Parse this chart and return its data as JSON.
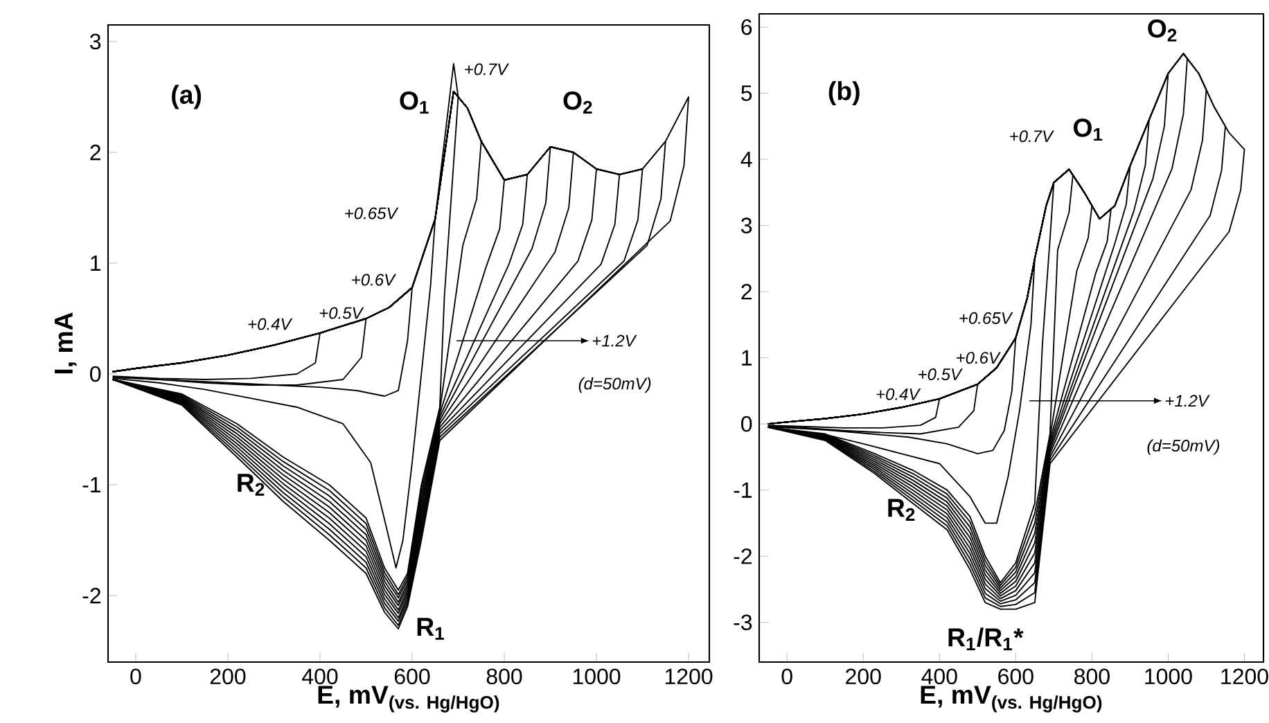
{
  "chart_data": [
    {
      "type": "line",
      "xlabel": "\\text{\\bfseries E, mV}_{\\text{\\bfseries (vs. Hg/HgO)}}",
      "ylabel": "I, mA",
      "xlim": [
        -60,
        1245
      ],
      "ylim": [
        -2.6,
        3.15
      ],
      "xticks": [
        0,
        200,
        400,
        600,
        800,
        1000,
        1200
      ],
      "yticks": [
        -2,
        -1,
        0,
        1,
        2,
        3
      ],
      "line_style": "solid",
      "annotations": [
        "(a)",
        "O$_{1}$",
        "O$_{2}$",
        "R$_{1}$",
        "R$_{2}$",
        "+0.7V",
        "+0.65V",
        "+0.6V",
        "+0.5V",
        "+0.4V",
        "+1.2V",
        "(d=50mV)"
      ],
      "series": [
        {
          "color": "#000000",
          "x": [
            -50,
            0,
            100,
            200,
            300,
            400,
            390,
            350,
            250,
            150,
            50,
            -50
          ],
          "values": [
            0.02,
            0.05,
            0.1,
            0.17,
            0.26,
            0.37,
            0.1,
            0.0,
            -0.04,
            -0.05,
            -0.04,
            -0.02
          ]
        },
        {
          "color": "#000000",
          "x": [
            -50,
            0,
            100,
            200,
            300,
            400,
            500,
            490,
            450,
            350,
            250,
            150,
            50,
            -50
          ],
          "values": [
            0.02,
            0.05,
            0.1,
            0.17,
            0.26,
            0.37,
            0.5,
            0.15,
            -0.05,
            -0.1,
            -0.1,
            -0.08,
            -0.05,
            -0.03
          ]
        },
        {
          "color": "#000000",
          "x": [
            -50,
            0,
            100,
            200,
            300,
            400,
            500,
            550,
            600,
            590,
            570,
            540,
            480,
            400,
            300,
            200,
            100,
            0,
            -50
          ],
          "values": [
            0.02,
            0.05,
            0.1,
            0.17,
            0.26,
            0.37,
            0.5,
            0.6,
            0.78,
            0.3,
            -0.15,
            -0.2,
            -0.15,
            -0.12,
            -0.1,
            -0.08,
            -0.06,
            -0.04,
            -0.03
          ]
        },
        {
          "color": "#000000",
          "x": [
            -50,
            0,
            100,
            200,
            300,
            400,
            500,
            550,
            600,
            650,
            640,
            620,
            600,
            580,
            565,
            545,
            510,
            450,
            350,
            250,
            150,
            50,
            -50
          ],
          "values": [
            0.02,
            0.05,
            0.1,
            0.17,
            0.26,
            0.37,
            0.5,
            0.6,
            0.78,
            1.4,
            0.8,
            0.0,
            -0.8,
            -1.5,
            -1.75,
            -1.4,
            -0.8,
            -0.45,
            -0.3,
            -0.22,
            -0.14,
            -0.08,
            -0.04
          ]
        },
        {
          "color": "#000000",
          "x": [
            -50,
            0,
            100,
            200,
            300,
            400,
            500,
            550,
            600,
            650,
            690,
            700,
            690,
            670,
            660,
            620,
            590,
            570,
            540,
            500,
            420,
            320,
            220,
            100,
            -50
          ],
          "values": [
            0.02,
            0.05,
            0.1,
            0.17,
            0.26,
            0.37,
            0.5,
            0.6,
            0.78,
            1.4,
            2.8,
            2.5,
            1.9,
            0.7,
            -0.3,
            -1.0,
            -1.8,
            -1.95,
            -1.75,
            -1.3,
            -1.0,
            -0.75,
            -0.45,
            -0.18,
            -0.05
          ]
        },
        {
          "color": "#000000",
          "x": [
            -50,
            0,
            100,
            200,
            300,
            400,
            500,
            550,
            600,
            650,
            690,
            720,
            750,
            740,
            710,
            660,
            620,
            590,
            570,
            540,
            500,
            420,
            320,
            220,
            100,
            -50
          ],
          "values": [
            0.02,
            0.05,
            0.1,
            0.17,
            0.26,
            0.37,
            0.5,
            0.6,
            0.78,
            1.4,
            2.55,
            2.4,
            2.1,
            1.58,
            1.16,
            -0.33,
            -1.05,
            -1.83,
            -1.99,
            -1.79,
            -1.35,
            -1.05,
            -0.79,
            -0.48,
            -0.19,
            -0.05
          ]
        },
        {
          "color": "#000000",
          "x": [
            -50,
            0,
            100,
            200,
            300,
            400,
            500,
            550,
            600,
            650,
            690,
            720,
            750,
            800,
            790,
            760,
            660,
            620,
            590,
            570,
            540,
            500,
            420,
            320,
            220,
            100,
            -50
          ],
          "values": [
            0.02,
            0.05,
            0.1,
            0.17,
            0.26,
            0.37,
            0.5,
            0.6,
            0.78,
            1.4,
            2.55,
            2.4,
            2.1,
            1.75,
            1.31,
            0.96,
            -0.36,
            -1.1,
            -1.86,
            -2.02,
            -1.83,
            -1.4,
            -1.1,
            -0.83,
            -0.51,
            -0.2,
            -0.05
          ]
        },
        {
          "color": "#000000",
          "x": [
            -50,
            0,
            100,
            200,
            300,
            400,
            500,
            550,
            600,
            650,
            690,
            720,
            750,
            800,
            850,
            840,
            810,
            660,
            620,
            590,
            570,
            540,
            500,
            420,
            320,
            220,
            100,
            -50
          ],
          "values": [
            0.02,
            0.05,
            0.1,
            0.17,
            0.26,
            0.37,
            0.5,
            0.6,
            0.78,
            1.4,
            2.55,
            2.4,
            2.1,
            1.75,
            1.8,
            1.35,
            0.99,
            -0.39,
            -1.15,
            -1.89,
            -2.06,
            -1.87,
            -1.45,
            -1.15,
            -0.87,
            -0.54,
            -0.21,
            -0.05
          ]
        },
        {
          "color": "#000000",
          "x": [
            -50,
            0,
            100,
            200,
            300,
            400,
            500,
            550,
            600,
            650,
            690,
            720,
            750,
            800,
            850,
            900,
            890,
            860,
            660,
            620,
            590,
            570,
            540,
            500,
            420,
            320,
            220,
            100,
            -50
          ],
          "values": [
            0.02,
            0.05,
            0.1,
            0.17,
            0.26,
            0.37,
            0.5,
            0.6,
            0.78,
            1.4,
            2.55,
            2.4,
            2.1,
            1.75,
            1.8,
            2.05,
            1.54,
            1.13,
            -0.42,
            -1.2,
            -1.92,
            -2.09,
            -1.91,
            -1.5,
            -1.2,
            -0.91,
            -0.57,
            -0.22,
            -0.05
          ]
        },
        {
          "color": "#000000",
          "x": [
            -50,
            0,
            100,
            200,
            300,
            400,
            500,
            550,
            600,
            650,
            690,
            720,
            750,
            800,
            850,
            900,
            950,
            940,
            910,
            660,
            620,
            590,
            570,
            540,
            500,
            420,
            320,
            220,
            100,
            -50
          ],
          "values": [
            0.02,
            0.05,
            0.1,
            0.17,
            0.26,
            0.37,
            0.5,
            0.6,
            0.78,
            1.4,
            2.55,
            2.4,
            2.1,
            1.75,
            1.8,
            2.05,
            2.0,
            1.5,
            1.1,
            -0.45,
            -1.25,
            -1.95,
            -2.13,
            -1.95,
            -1.55,
            -1.25,
            -0.95,
            -0.6,
            -0.23,
            -0.05
          ]
        },
        {
          "color": "#000000",
          "x": [
            -50,
            0,
            100,
            200,
            300,
            400,
            500,
            550,
            600,
            650,
            690,
            720,
            750,
            800,
            850,
            900,
            950,
            1000,
            990,
            960,
            660,
            620,
            590,
            570,
            540,
            500,
            420,
            320,
            220,
            100,
            -50
          ],
          "values": [
            0.02,
            0.05,
            0.1,
            0.17,
            0.26,
            0.37,
            0.5,
            0.6,
            0.78,
            1.4,
            2.55,
            2.4,
            2.1,
            1.75,
            1.8,
            2.05,
            2.0,
            1.85,
            1.39,
            1.02,
            -0.48,
            -1.3,
            -1.98,
            -2.16,
            -1.99,
            -1.6,
            -1.3,
            -0.99,
            -0.63,
            -0.24,
            -0.05
          ]
        },
        {
          "color": "#000000",
          "x": [
            -50,
            0,
            100,
            200,
            300,
            400,
            500,
            550,
            600,
            650,
            690,
            720,
            750,
            800,
            850,
            900,
            950,
            1000,
            1050,
            1040,
            1010,
            660,
            620,
            590,
            570,
            540,
            500,
            420,
            320,
            220,
            100,
            -50
          ],
          "values": [
            0.02,
            0.05,
            0.1,
            0.17,
            0.26,
            0.37,
            0.5,
            0.6,
            0.78,
            1.4,
            2.55,
            2.4,
            2.1,
            1.75,
            1.8,
            2.05,
            2.0,
            1.85,
            1.8,
            1.35,
            0.99,
            -0.51,
            -1.35,
            -2.01,
            -2.2,
            -2.03,
            -1.65,
            -1.35,
            -1.03,
            -0.66,
            -0.25,
            -0.05
          ]
        },
        {
          "color": "#000000",
          "x": [
            -50,
            0,
            100,
            200,
            300,
            400,
            500,
            550,
            600,
            650,
            690,
            720,
            750,
            800,
            850,
            900,
            950,
            1000,
            1050,
            1100,
            1090,
            1060,
            660,
            620,
            590,
            570,
            540,
            500,
            420,
            320,
            220,
            100,
            -50
          ],
          "values": [
            0.02,
            0.05,
            0.1,
            0.17,
            0.26,
            0.37,
            0.5,
            0.6,
            0.78,
            1.4,
            2.55,
            2.4,
            2.1,
            1.75,
            1.8,
            2.05,
            2.0,
            1.85,
            1.8,
            1.85,
            1.39,
            1.02,
            -0.54,
            -1.4,
            -2.04,
            -2.23,
            -2.07,
            -1.7,
            -1.4,
            -1.07,
            -0.69,
            -0.26,
            -0.05
          ]
        },
        {
          "color": "#000000",
          "x": [
            -50,
            0,
            100,
            200,
            300,
            400,
            500,
            550,
            600,
            650,
            690,
            720,
            750,
            800,
            850,
            900,
            950,
            1000,
            1050,
            1100,
            1150,
            1140,
            1110,
            660,
            620,
            590,
            570,
            540,
            500,
            420,
            320,
            220,
            100,
            -50
          ],
          "values": [
            0.02,
            0.05,
            0.1,
            0.17,
            0.26,
            0.37,
            0.5,
            0.6,
            0.78,
            1.4,
            2.55,
            2.4,
            2.1,
            1.75,
            1.8,
            2.05,
            2.0,
            1.85,
            1.8,
            1.85,
            2.1,
            1.58,
            1.16,
            -0.57,
            -1.45,
            -2.07,
            -2.27,
            -2.11,
            -1.75,
            -1.45,
            -1.11,
            -0.72,
            -0.27,
            -0.05
          ]
        },
        {
          "color": "#000000",
          "x": [
            -50,
            0,
            100,
            200,
            300,
            400,
            500,
            550,
            600,
            650,
            690,
            720,
            750,
            800,
            850,
            900,
            950,
            1000,
            1050,
            1100,
            1150,
            1200,
            1190,
            1160,
            660,
            620,
            590,
            570,
            540,
            500,
            420,
            320,
            220,
            100,
            -50
          ],
          "values": [
            0.02,
            0.05,
            0.1,
            0.17,
            0.26,
            0.37,
            0.5,
            0.6,
            0.78,
            1.4,
            2.55,
            2.4,
            2.1,
            1.75,
            1.8,
            2.05,
            2.0,
            1.85,
            1.8,
            1.85,
            2.1,
            2.5,
            1.88,
            1.38,
            -0.6,
            -1.5,
            -2.1,
            -2.3,
            -2.15,
            -1.8,
            -1.5,
            -1.15,
            -0.75,
            -0.28,
            -0.05
          ]
        }
      ]
    },
    {
      "type": "line",
      "xlabel": "\\text{\\bfseries E, mV}_{\\text{\\bfseries (vs. Hg/HgO)}}",
      "xlim": [
        -73,
        1250
      ],
      "ylim": [
        -3.6,
        6.2
      ],
      "xticks": [
        0,
        200,
        400,
        600,
        800,
        1000,
        1200
      ],
      "yticks": [
        -3,
        -2,
        -1,
        0,
        1,
        2,
        3,
        4,
        5,
        6
      ],
      "line_style": "solid",
      "annotations": [
        "(b)",
        "O$_{1}$",
        "O$_{2}$",
        "R$_{1}$/R$_{1}$*",
        "R$_{2}$",
        "+0.7V",
        "+0.65V",
        "+0.6V",
        "+0.5V",
        "+0.4V",
        "+1.2V",
        "(d=50mV)"
      ],
      "series": [
        {
          "color": "#000000",
          "x": [
            -50,
            0,
            100,
            200,
            300,
            400,
            390,
            350,
            250,
            150,
            50,
            -50
          ],
          "values": [
            0.0,
            0.03,
            0.08,
            0.15,
            0.25,
            0.38,
            0.1,
            -0.02,
            -0.06,
            -0.06,
            -0.04,
            -0.02
          ]
        },
        {
          "color": "#000000",
          "x": [
            -50,
            0,
            100,
            200,
            300,
            400,
            500,
            490,
            450,
            350,
            250,
            150,
            50,
            -50
          ],
          "values": [
            0.0,
            0.03,
            0.08,
            0.15,
            0.25,
            0.38,
            0.6,
            0.2,
            -0.05,
            -0.15,
            -0.13,
            -0.1,
            -0.06,
            -0.03
          ]
        },
        {
          "color": "#000000",
          "x": [
            -50,
            0,
            100,
            200,
            300,
            400,
            500,
            550,
            600,
            590,
            570,
            540,
            500,
            420,
            320,
            200,
            100,
            -50
          ],
          "values": [
            0.0,
            0.03,
            0.08,
            0.15,
            0.25,
            0.38,
            0.6,
            0.85,
            1.3,
            0.5,
            -0.1,
            -0.4,
            -0.45,
            -0.3,
            -0.2,
            -0.14,
            -0.09,
            -0.04
          ]
        },
        {
          "color": "#000000",
          "x": [
            -50,
            0,
            100,
            200,
            300,
            400,
            500,
            550,
            600,
            630,
            650,
            640,
            610,
            580,
            550,
            520,
            480,
            400,
            300,
            200,
            100,
            -50
          ],
          "values": [
            0.0,
            0.03,
            0.08,
            0.15,
            0.25,
            0.38,
            0.6,
            0.85,
            1.3,
            1.9,
            2.5,
            1.5,
            0.2,
            -0.8,
            -1.5,
            -1.5,
            -1.1,
            -0.6,
            -0.45,
            -0.3,
            -0.16,
            -0.05
          ]
        },
        {
          "color": "#000000",
          "x": [
            -50,
            0,
            100,
            200,
            300,
            400,
            500,
            550,
            600,
            630,
            650,
            680,
            700,
            690,
            670,
            650,
            600,
            560,
            520,
            480,
            420,
            330,
            230,
            100,
            -50
          ],
          "values": [
            0.0,
            0.03,
            0.08,
            0.15,
            0.25,
            0.38,
            0.6,
            0.85,
            1.3,
            1.9,
            2.5,
            3.3,
            3.65,
            2.8,
            1.2,
            -1.2,
            -2.1,
            -2.4,
            -2.0,
            -1.4,
            -1.0,
            -0.7,
            -0.45,
            -0.15,
            -0.05
          ]
        },
        {
          "color": "#000000",
          "x": [
            -50,
            0,
            100,
            200,
            300,
            400,
            500,
            550,
            600,
            630,
            650,
            680,
            700,
            740,
            750,
            740,
            710,
            690,
            650,
            600,
            560,
            520,
            480,
            420,
            330,
            230,
            100,
            -50
          ],
          "values": [
            0.0,
            0.03,
            0.08,
            0.15,
            0.25,
            0.38,
            0.6,
            0.85,
            1.3,
            1.9,
            2.5,
            3.3,
            3.65,
            3.85,
            3.76,
            3.2,
            2.63,
            -0.15,
            -1.35,
            -2.17,
            -2.44,
            -2.07,
            -1.48,
            -1.06,
            -0.75,
            -0.48,
            -0.16,
            -0.05
          ]
        },
        {
          "color": "#000000",
          "x": [
            -50,
            0,
            100,
            200,
            300,
            400,
            500,
            550,
            600,
            630,
            650,
            680,
            700,
            740,
            780,
            800,
            790,
            760,
            690,
            650,
            600,
            560,
            520,
            480,
            420,
            330,
            230,
            100,
            -50
          ],
          "values": [
            0.0,
            0.03,
            0.08,
            0.15,
            0.25,
            0.38,
            0.6,
            0.85,
            1.3,
            1.9,
            2.5,
            3.3,
            3.65,
            3.85,
            3.5,
            3.3,
            2.81,
            2.31,
            -0.2,
            -1.5,
            -2.24,
            -2.48,
            -2.14,
            -1.56,
            -1.12,
            -0.8,
            -0.51,
            -0.17,
            -0.05
          ]
        },
        {
          "color": "#000000",
          "x": [
            -50,
            0,
            100,
            200,
            300,
            400,
            500,
            550,
            600,
            630,
            650,
            680,
            700,
            740,
            780,
            820,
            850,
            840,
            810,
            690,
            650,
            600,
            560,
            520,
            480,
            420,
            330,
            230,
            100,
            -50
          ],
          "values": [
            0.0,
            0.03,
            0.08,
            0.15,
            0.25,
            0.38,
            0.6,
            0.85,
            1.3,
            1.9,
            2.5,
            3.3,
            3.65,
            3.85,
            3.5,
            3.1,
            3.25,
            2.76,
            2.28,
            -0.25,
            -1.65,
            -2.31,
            -2.52,
            -2.21,
            -1.64,
            -1.18,
            -0.85,
            -0.54,
            -0.18,
            -0.05
          ]
        },
        {
          "color": "#000000",
          "x": [
            -50,
            0,
            100,
            200,
            300,
            400,
            500,
            550,
            600,
            630,
            650,
            680,
            700,
            740,
            780,
            820,
            860,
            900,
            890,
            860,
            690,
            650,
            600,
            560,
            520,
            480,
            420,
            330,
            230,
            100,
            -50
          ],
          "values": [
            0.0,
            0.03,
            0.08,
            0.15,
            0.25,
            0.38,
            0.6,
            0.85,
            1.3,
            1.9,
            2.5,
            3.3,
            3.65,
            3.85,
            3.5,
            3.1,
            3.3,
            3.9,
            3.32,
            2.73,
            -0.3,
            -1.8,
            -2.38,
            -2.56,
            -2.28,
            -1.72,
            -1.24,
            -0.9,
            -0.57,
            -0.19,
            -0.05
          ]
        },
        {
          "color": "#000000",
          "x": [
            -50,
            0,
            100,
            200,
            300,
            400,
            500,
            550,
            600,
            630,
            650,
            680,
            700,
            740,
            780,
            820,
            860,
            900,
            950,
            940,
            910,
            690,
            650,
            600,
            560,
            520,
            480,
            420,
            330,
            230,
            100,
            -50
          ],
          "values": [
            0.0,
            0.03,
            0.08,
            0.15,
            0.25,
            0.38,
            0.6,
            0.85,
            1.3,
            1.9,
            2.5,
            3.3,
            3.65,
            3.85,
            3.5,
            3.1,
            3.3,
            3.9,
            4.6,
            3.91,
            3.22,
            -0.35,
            -1.95,
            -2.45,
            -2.6,
            -2.35,
            -1.8,
            -1.3,
            -0.95,
            -0.6,
            -0.2,
            -0.05
          ]
        },
        {
          "color": "#000000",
          "x": [
            -50,
            0,
            100,
            200,
            300,
            400,
            500,
            550,
            600,
            630,
            650,
            680,
            700,
            740,
            780,
            820,
            860,
            900,
            950,
            1000,
            990,
            960,
            690,
            650,
            600,
            560,
            520,
            480,
            420,
            330,
            230,
            100,
            -50
          ],
          "values": [
            0.0,
            0.03,
            0.08,
            0.15,
            0.25,
            0.38,
            0.6,
            0.85,
            1.3,
            1.9,
            2.5,
            3.3,
            3.65,
            3.85,
            3.5,
            3.1,
            3.3,
            3.9,
            4.6,
            5.3,
            4.5,
            3.71,
            -0.4,
            -2.1,
            -2.52,
            -2.64,
            -2.42,
            -1.88,
            -1.36,
            -1.0,
            -0.63,
            -0.21,
            -0.05
          ]
        },
        {
          "color": "#000000",
          "x": [
            -50,
            0,
            100,
            200,
            300,
            400,
            500,
            550,
            600,
            630,
            650,
            680,
            700,
            740,
            780,
            820,
            860,
            900,
            950,
            1000,
            1040,
            1050,
            1040,
            1010,
            690,
            650,
            600,
            560,
            520,
            480,
            420,
            330,
            230,
            100,
            -50
          ],
          "values": [
            0.0,
            0.03,
            0.08,
            0.15,
            0.25,
            0.38,
            0.6,
            0.85,
            1.3,
            1.9,
            2.5,
            3.3,
            3.65,
            3.85,
            3.5,
            3.1,
            3.3,
            3.9,
            4.6,
            5.3,
            5.6,
            5.52,
            4.69,
            3.86,
            -0.45,
            -2.25,
            -2.59,
            -2.68,
            -2.49,
            -1.96,
            -1.42,
            -1.05,
            -0.66,
            -0.22,
            -0.05
          ]
        },
        {
          "color": "#000000",
          "x": [
            -50,
            0,
            100,
            200,
            300,
            400,
            500,
            550,
            600,
            630,
            650,
            680,
            700,
            740,
            780,
            820,
            860,
            900,
            950,
            1000,
            1040,
            1080,
            1100,
            1090,
            1060,
            690,
            650,
            600,
            560,
            520,
            480,
            420,
            330,
            230,
            100,
            -50
          ],
          "values": [
            0.0,
            0.03,
            0.08,
            0.15,
            0.25,
            0.38,
            0.6,
            0.85,
            1.3,
            1.9,
            2.5,
            3.3,
            3.65,
            3.85,
            3.5,
            3.1,
            3.3,
            3.9,
            4.6,
            5.3,
            5.6,
            5.3,
            5.05,
            4.29,
            3.54,
            -0.5,
            -2.4,
            -2.66,
            -2.72,
            -2.56,
            -2.04,
            -1.48,
            -1.1,
            -0.69,
            -0.23,
            -0.05
          ]
        },
        {
          "color": "#000000",
          "x": [
            -50,
            0,
            100,
            200,
            300,
            400,
            500,
            550,
            600,
            630,
            650,
            680,
            700,
            740,
            780,
            820,
            860,
            900,
            950,
            1000,
            1040,
            1080,
            1120,
            1150,
            1140,
            1110,
            690,
            650,
            600,
            560,
            520,
            480,
            420,
            330,
            230,
            100,
            -50
          ],
          "values": [
            0.0,
            0.03,
            0.08,
            0.15,
            0.25,
            0.38,
            0.6,
            0.85,
            1.3,
            1.9,
            2.5,
            3.3,
            3.65,
            3.85,
            3.5,
            3.1,
            3.3,
            3.9,
            4.6,
            5.3,
            5.6,
            5.3,
            4.8,
            4.5,
            3.83,
            3.15,
            -0.55,
            -2.55,
            -2.73,
            -2.76,
            -2.63,
            -2.12,
            -1.54,
            -1.15,
            -0.72,
            -0.24,
            -0.05
          ]
        },
        {
          "color": "#000000",
          "x": [
            -50,
            0,
            100,
            200,
            300,
            400,
            500,
            550,
            600,
            630,
            650,
            680,
            700,
            740,
            780,
            820,
            860,
            900,
            950,
            1000,
            1040,
            1080,
            1120,
            1160,
            1200,
            1190,
            1160,
            690,
            650,
            600,
            560,
            520,
            480,
            420,
            330,
            230,
            100,
            -50
          ],
          "values": [
            0.0,
            0.03,
            0.08,
            0.15,
            0.25,
            0.38,
            0.6,
            0.85,
            1.3,
            1.9,
            2.5,
            3.3,
            3.65,
            3.85,
            3.5,
            3.1,
            3.3,
            3.9,
            4.6,
            5.3,
            5.6,
            5.3,
            4.8,
            4.4,
            4.15,
            3.53,
            2.91,
            -0.6,
            -2.7,
            -2.8,
            -2.8,
            -2.7,
            -2.2,
            -1.6,
            -1.2,
            -0.75,
            -0.25,
            -0.05
          ]
        }
      ]
    }
  ]
}
